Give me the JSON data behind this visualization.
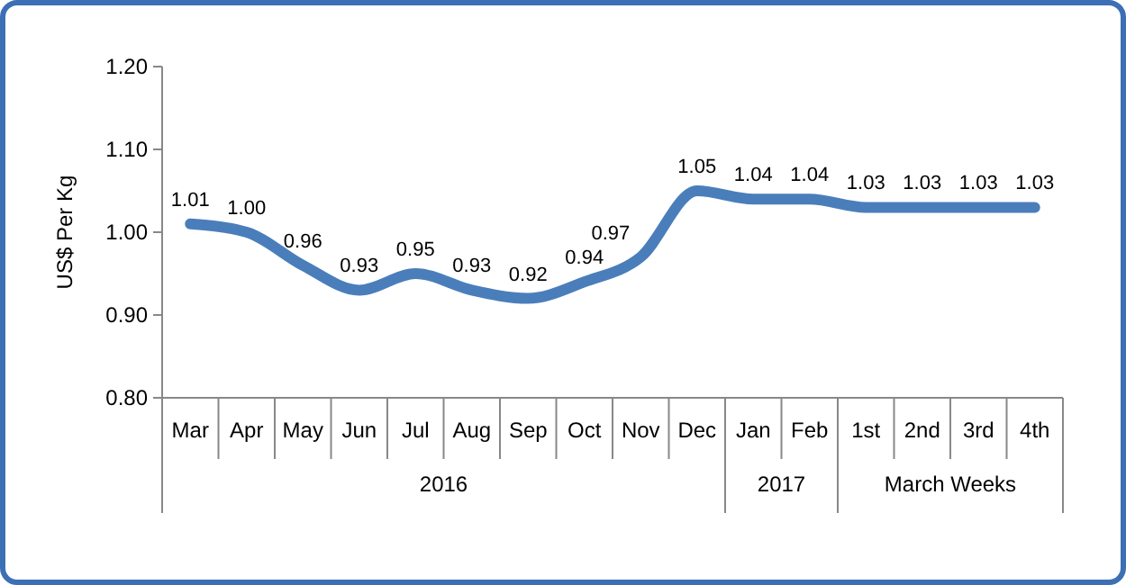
{
  "chart_data": {
    "type": "line",
    "ylabel": "US$ Per Kg",
    "categories": [
      "Mar",
      "Apr",
      "May",
      "Jun",
      "Jul",
      "Aug",
      "Sep",
      "Oct",
      "Nov",
      "Dec",
      "Jan",
      "Feb",
      "1st",
      "2nd",
      "3rd",
      "4th"
    ],
    "series": [
      {
        "color": "#4a7ebb",
        "values": [
          1.01,
          1.0,
          0.96,
          0.93,
          0.95,
          0.93,
          0.92,
          0.94,
          0.97,
          1.05,
          1.04,
          1.04,
          1.03,
          1.03,
          1.03,
          1.03
        ],
        "value_labels": [
          "1.01",
          "1.00",
          "0.96",
          "0.93",
          "0.95",
          "0.93",
          "0.92",
          "0.94",
          "0.97",
          "1.05",
          "1.04",
          "1.04",
          "1.03",
          "1.03",
          "1.03",
          "1.03"
        ]
      }
    ],
    "ylim": [
      0.8,
      1.2
    ],
    "yticks": [
      {
        "value": 0.8,
        "label": "0.80"
      },
      {
        "value": 0.9,
        "label": "0.90"
      },
      {
        "value": 1.0,
        "label": "1.00"
      },
      {
        "value": 1.1,
        "label": "1.10"
      },
      {
        "value": 1.2,
        "label": "1.20"
      }
    ],
    "annotations": [
      "2016",
      "2017",
      "March Weeks"
    ],
    "data_labels": true,
    "grid": false,
    "marker": "none",
    "line_style": "solid"
  }
}
